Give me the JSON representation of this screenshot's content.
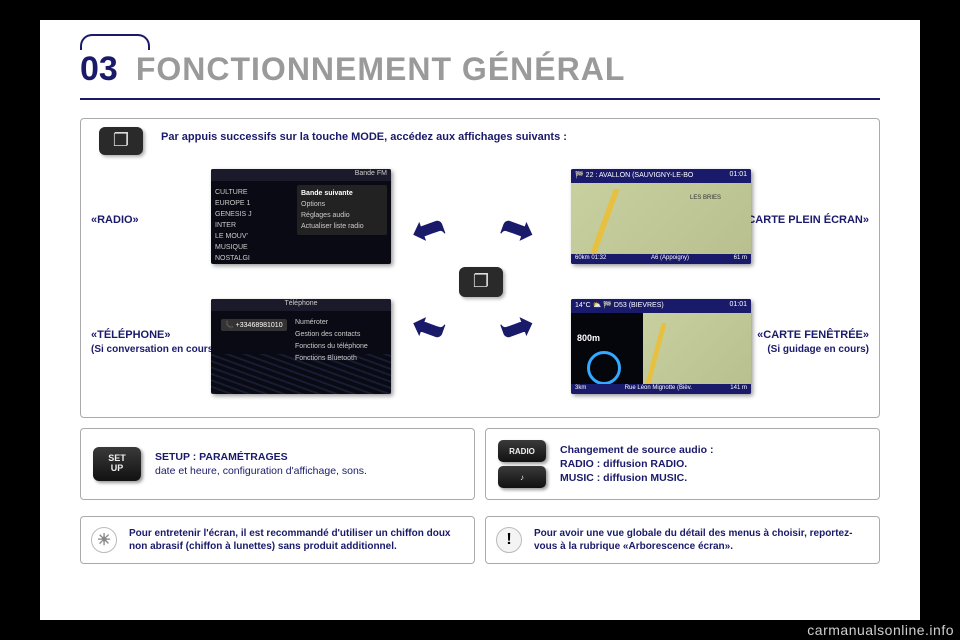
{
  "header": {
    "chapter": "03",
    "title": "FONCTIONNEMENT GÉNÉRAL"
  },
  "main": {
    "mode_instruction": "Par appuis successifs sur la touche MODE, accédez aux affichages suivants :",
    "labels": {
      "radio": "«RADIO»",
      "telephone": "«TÉLÉPHONE»",
      "telephone_sub": "(Si conversation en cours)",
      "full_map": "«CARTE PLEIN ÉCRAN»",
      "windowed_map": "«CARTE FENÊTRÉE»",
      "windowed_map_sub": "(Si guidage en cours)"
    },
    "thumbs": {
      "radio": {
        "band": "Bande FM",
        "stations": [
          "CULTURE",
          "EUROPE 1",
          "GENESIS J",
          "INTER",
          "LE MOUV'",
          "MUSIQUE",
          "NOSTALGI"
        ],
        "menu_highlight": "Bande suivante",
        "menu": [
          "Options",
          "Réglages audio",
          "Actualiser liste radio"
        ]
      },
      "telephone": {
        "title": "Téléphone",
        "number": "+33468981010",
        "menu": [
          "Numéroter",
          "Gestion des contacts",
          "Fonctions du téléphone",
          "Fonctions Bluetooth"
        ]
      },
      "map1": {
        "dest": "22 : AVALLON (SAUVIGNY-LE-BO",
        "time": "01:01",
        "scale_left": "560m",
        "town": "LES BRIES",
        "bottom_left": "60km   01:32",
        "bottom_mid": "A6 (Appoigny)",
        "bottom_right": "61 m"
      },
      "map2": {
        "temp": "14°C",
        "dest": "D53 (BIEVRES)",
        "time": "01:01",
        "dist": "800m",
        "bottom_left": "3km",
        "bottom_mid": "Rue Léon Mignotte (Bièv.",
        "bottom_right": "141 m"
      }
    }
  },
  "setup_panel": {
    "button": "SET\nUP",
    "title": "SETUP : PARAMÉTRAGES",
    "sub": "date et heure, configuration d'affichage, sons."
  },
  "source_panel": {
    "button_top": "RADIO",
    "button_bottom": "♪",
    "line1": "Changement de source audio :",
    "line2": "RADIO : diffusion RADIO.",
    "line3": "MUSIC : diffusion MUSIC."
  },
  "tip_left": "Pour entretenir l'écran, il est recommandé d'utiliser un chiffon doux non abrasif (chiffon à lunettes) sans produit additionnel.",
  "tip_right": "Pour avoir une vue globale du détail des menus à choisir, reportez-vous à la rubrique «Arborescence écran».",
  "footer": "carmanualsonline.info"
}
